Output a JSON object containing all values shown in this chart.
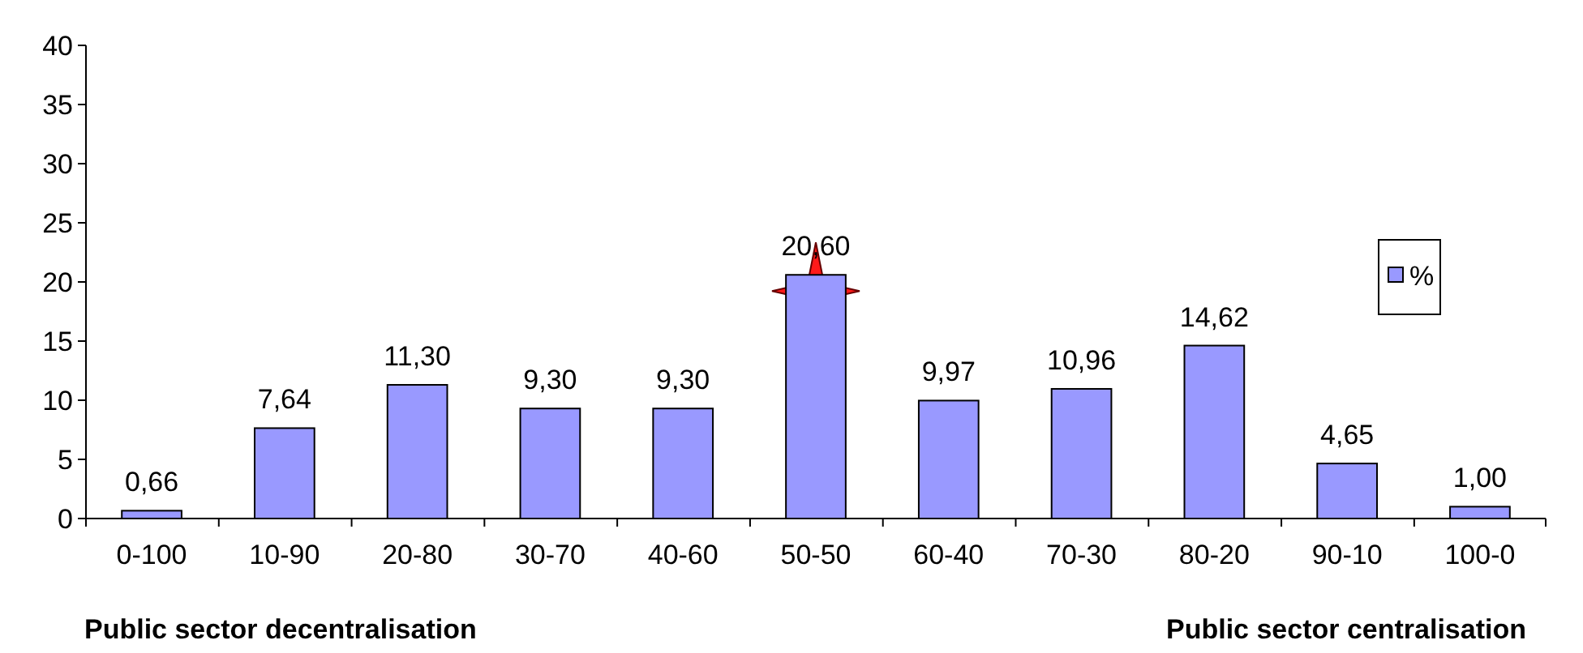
{
  "chart_data": {
    "type": "bar",
    "categories": [
      "0-100",
      "10-90",
      "20-80",
      "30-70",
      "40-60",
      "50-50",
      "60-40",
      "70-30",
      "80-20",
      "90-10",
      "100-0"
    ],
    "series": [
      {
        "name": "%",
        "color": "#9999ff",
        "values": [
          0.66,
          7.64,
          11.3,
          9.3,
          9.3,
          20.6,
          9.97,
          10.96,
          14.62,
          4.65,
          1.0
        ],
        "value_labels": [
          "0,66",
          "7,64",
          "11,30",
          "9,30",
          "9,30",
          "20,60",
          "9,97",
          "10,96",
          "14,62",
          "4,65",
          "1,00"
        ]
      }
    ],
    "ylim": [
      0,
      40
    ],
    "yticks": [
      0,
      5,
      10,
      15,
      20,
      25,
      30,
      35,
      40
    ],
    "grid": false,
    "legend": "right",
    "annotations": [
      "Public sector decentralisation",
      "Public sector centralisation"
    ]
  }
}
